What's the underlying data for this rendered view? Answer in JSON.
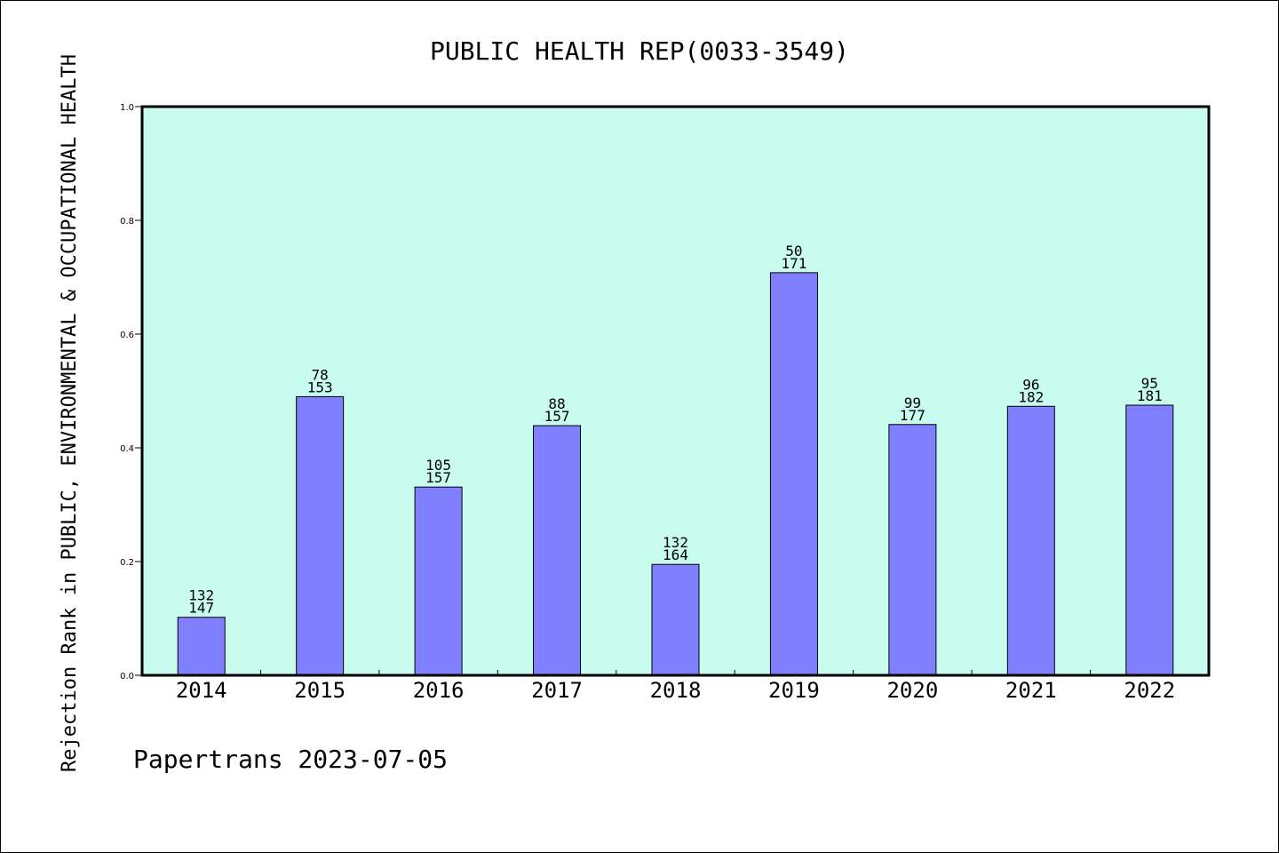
{
  "chart_data": {
    "type": "bar",
    "title": "PUBLIC HEALTH REP(0033-3549)",
    "ylabel": "Rejection Rank in PUBLIC, ENVIRONMENTAL & OCCUPATIONAL HEALTH",
    "xlabel": "",
    "footer": "Papertrans 2023-07-05",
    "categories": [
      "2014",
      "2015",
      "2016",
      "2017",
      "2018",
      "2019",
      "2020",
      "2021",
      "2022"
    ],
    "values": [
      0.102,
      0.49,
      0.331,
      0.439,
      0.195,
      0.708,
      0.441,
      0.473,
      0.475
    ],
    "rank": [
      132,
      78,
      105,
      88,
      132,
      50,
      99,
      96,
      95
    ],
    "total": [
      147,
      153,
      157,
      157,
      164,
      171,
      177,
      182,
      181
    ],
    "ylim": [
      0,
      1.0
    ],
    "yticks": [
      "0.0",
      "0.2",
      "0.4",
      "0.6",
      "0.8",
      "1.0"
    ],
    "grid": false,
    "colors": {
      "plot_background": "#c8fcee",
      "bar_fill": "#8080ff",
      "bar_stroke": "#000000",
      "axis": "#000000"
    }
  }
}
